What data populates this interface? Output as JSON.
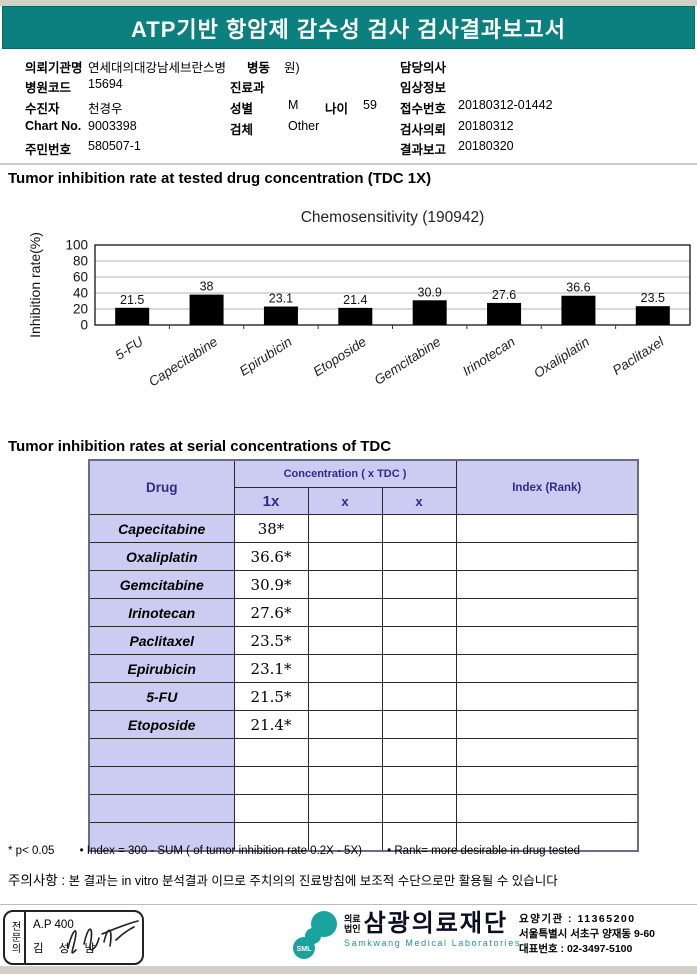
{
  "banner": {
    "title": "ATP기반 항암제 감수성 검사 검사결과보고서",
    "bg_color": "#0c7f7f"
  },
  "info": {
    "left": [
      {
        "label": "의뢰기관명",
        "value": "연세대의대강남세브란스병"
      },
      {
        "label": "병원코드",
        "value": "15694"
      },
      {
        "label": "수진자",
        "value": "천경우"
      },
      {
        "label": "Chart No.",
        "value": "9003398"
      },
      {
        "label": "주민번호",
        "value": "580507-1"
      }
    ],
    "middle": {
      "ward_label": "병동",
      "ward_tail": "원)",
      "dept_label": "진료과",
      "dept_value": "",
      "sex_label": "성별",
      "sex_value": "M",
      "age_label": "나이",
      "age_value": "59",
      "specimen_label": "검체",
      "specimen_value": "Other"
    },
    "right": [
      {
        "label": "담당의사",
        "value": ""
      },
      {
        "label": "임상정보",
        "value": ""
      },
      {
        "label": "접수번호",
        "value": "20180312-01442"
      },
      {
        "label": "검사의뢰",
        "value": "20180312"
      },
      {
        "label": "결과보고",
        "value": "20180320"
      }
    ]
  },
  "section1_title": "Tumor inhibition rate at tested drug concentration (TDC 1X)",
  "chart_data": {
    "type": "bar",
    "title": "Chemosensitivity (190942)",
    "ylabel": "Inhibition rate(%)",
    "xlabel": "",
    "categories": [
      "5-FU",
      "Capecitabine",
      "Epirubicin",
      "Etoposide",
      "Gemcitabine",
      "Irinotecan",
      "Oxaliplatin",
      "Paclitaxel"
    ],
    "values": [
      21.5,
      38,
      23.1,
      21.4,
      30.9,
      27.6,
      36.6,
      23.5
    ],
    "value_labels": [
      "21.5",
      "38",
      "23.1",
      "21.4",
      "30.9",
      "27.6",
      "36.6",
      "23.5"
    ],
    "ylim": [
      0,
      100
    ],
    "yticks": [
      0,
      20,
      40,
      60,
      80,
      100
    ],
    "grid": true,
    "bar_color": "#000000",
    "legend_position": "none"
  },
  "section2_title": "Tumor inhibition rates at serial concentrations of TDC",
  "table": {
    "col_drug": "Drug",
    "col_conc": "Concentration ( x TDC )",
    "col_1x": "1x",
    "col_x2": "x",
    "col_x3": "x",
    "col_index": "Index (Rank)",
    "rows": [
      {
        "drug": "Capecitabine",
        "values": [
          "38*",
          "",
          ""
        ],
        "index": ""
      },
      {
        "drug": "Oxaliplatin",
        "values": [
          "36.6*",
          "",
          ""
        ],
        "index": ""
      },
      {
        "drug": "Gemcitabine",
        "values": [
          "30.9*",
          "",
          ""
        ],
        "index": ""
      },
      {
        "drug": "Irinotecan",
        "values": [
          "27.6*",
          "",
          ""
        ],
        "index": ""
      },
      {
        "drug": "Paclitaxel",
        "values": [
          "23.5*",
          "",
          ""
        ],
        "index": ""
      },
      {
        "drug": "Epirubicin",
        "values": [
          "23.1*",
          "",
          ""
        ],
        "index": ""
      },
      {
        "drug": "5-FU",
        "values": [
          "21.5*",
          "",
          ""
        ],
        "index": ""
      },
      {
        "drug": "Etoposide",
        "values": [
          "21.4*",
          "",
          ""
        ],
        "index": ""
      }
    ],
    "empty_rows": 4
  },
  "footnotes": {
    "sig": "* p< 0.05",
    "index": "• Index = 300 - SUM ( of tumor inhibition rate 0.2X  -  5X)",
    "rank": "• Rank= more desirable in drug tested"
  },
  "caution": {
    "label": "주의사항 :",
    "text": "본 결과는 in vitro 분석결과 이므로 주치의의 진료방침에 보조적 수단으로만 활용될 수 있습니다"
  },
  "footer": {
    "sign_box": {
      "vertical_label": "전문의",
      "line1": "A.P 400",
      "line2": "김 성 남"
    },
    "logo_text": "SML",
    "logo_color": "#18a39e",
    "org_small_1": "의료",
    "org_small_2": "법인",
    "org_name": "삼광의료재단",
    "org_en": "Samkwang Medical Laboratories",
    "contact": [
      "요양기관 : 11365200",
      "서울특별시 서초구 양재동 9-60",
      "대표번호 : 02-3497-5100"
    ]
  }
}
